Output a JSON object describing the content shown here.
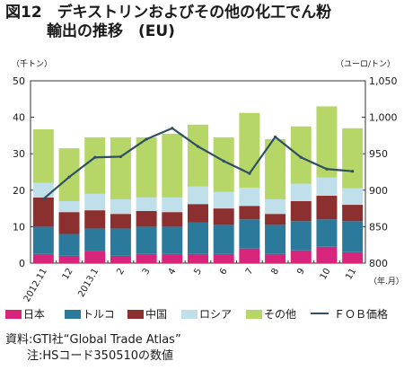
{
  "title": {
    "line1": "図12　デキストリンおよびその他の化工でん粉",
    "line2": "輸出の推移　(EU)"
  },
  "chart_data": {
    "type": "bar",
    "stacked": true,
    "categories": [
      "2012.11",
      "12",
      "2013.1",
      "2",
      "3",
      "4",
      "5",
      "6",
      "7",
      "8",
      "9",
      "10",
      "11"
    ],
    "x_unit": "（年.月）",
    "left_axis": {
      "unit": "（千トン）",
      "ylim": [
        0,
        50
      ],
      "ticks": [
        0,
        10,
        20,
        30,
        40,
        50
      ]
    },
    "right_axis": {
      "unit": "（ユーロ/トン）",
      "ylim": [
        800,
        1050
      ],
      "ticks": [
        "800",
        "850",
        "900",
        "950",
        "1,000",
        "1,050"
      ]
    },
    "grid": false,
    "series": [
      {
        "name": "日本",
        "color": "#d6257a",
        "values": [
          2.5,
          2,
          3.3,
          2,
          2.5,
          2.5,
          2.5,
          2.5,
          4,
          2.5,
          3.5,
          4.5,
          3
        ]
      },
      {
        "name": "トルコ",
        "color": "#2b7a9b",
        "values": [
          7.5,
          6,
          6.2,
          7.5,
          7.5,
          7.5,
          8.7,
          8,
          8,
          8,
          8,
          7.5,
          8.5
        ]
      },
      {
        "name": "中国",
        "color": "#8b2f2f",
        "values": [
          8,
          6,
          5,
          4,
          4.3,
          4,
          5,
          4.5,
          3.7,
          3,
          5.5,
          6.5,
          4.5
        ]
      },
      {
        "name": "ロシア",
        "color": "#bfe0ea",
        "values": [
          4,
          3,
          4.5,
          4,
          3.7,
          4,
          4.8,
          4.5,
          5,
          4,
          4.8,
          5,
          4.5
        ]
      },
      {
        "name": "その他",
        "color": "#b7d668",
        "values": [
          14.7,
          14.5,
          15.5,
          17,
          16.5,
          17.5,
          17,
          15,
          20.5,
          16.5,
          15.7,
          19.5,
          16.5
        ]
      }
    ],
    "line_series": {
      "name": "ＦＯＢ価格",
      "color": "#2f4f63",
      "axis": "right",
      "values": [
        888,
        918,
        945,
        946,
        970,
        985,
        960,
        940,
        923,
        973,
        945,
        929,
        926
      ]
    }
  },
  "legend": {
    "items": [
      "日本",
      "トルコ",
      "中国",
      "ロシア",
      "その他"
    ],
    "line_label": "ＦＯＢ価格"
  },
  "notes": {
    "source": "資料:GTI社“Global Trade Atlas”",
    "note": "注:HSコード350510の数値"
  }
}
